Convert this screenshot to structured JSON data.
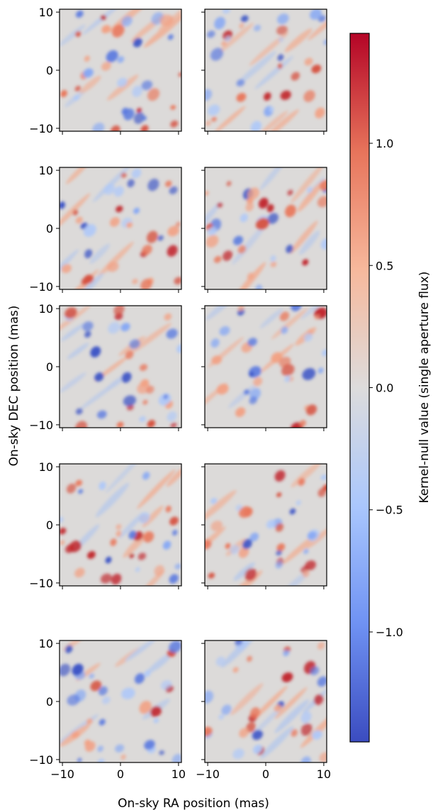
{
  "figure": {
    "xlabel": "On-sky RA position (mas)",
    "ylabel": "On-sky DEC position (mas)",
    "colorbar_label": "Kernel-null value (single aperture flux)"
  },
  "chart_data": {
    "type": "heatmap",
    "layout": {
      "rows": 5,
      "cols": 2,
      "sharex": true,
      "sharey": true
    },
    "xlabel": "On-sky RA position (mas)",
    "ylabel": "On-sky DEC position (mas)",
    "xlim": [
      -10.5,
      10.5
    ],
    "ylim": [
      -10.5,
      10.5
    ],
    "x_ticks": [
      -10,
      0,
      10
    ],
    "y_ticks": [
      -10,
      0,
      10
    ],
    "x_tick_labels": [
      "−10",
      "0",
      "10"
    ],
    "y_tick_labels": [
      "−10",
      "0",
      "10"
    ],
    "colormap": "coolwarm",
    "colormap_stops": [
      "#3b4cc0",
      "#6f92f3",
      "#aac7fd",
      "#dddcdc",
      "#f7b89c",
      "#e7745b",
      "#b40426"
    ],
    "colorbar": {
      "label": "Kernel-null value (single aperture flux)",
      "range": [
        -1.45,
        1.45
      ],
      "ticks": [
        -1.0,
        -0.5,
        0.0,
        0.5,
        1.0
      ],
      "tick_labels": [
        "−1.0",
        "−0.5",
        "0.0",
        "0.5",
        "1.0"
      ],
      "orientation": "vertical",
      "placement": "right"
    },
    "panels": [
      {
        "row": 1,
        "col": 1,
        "seed": 11
      },
      {
        "row": 1,
        "col": 2,
        "seed": 23
      },
      {
        "row": 2,
        "col": 1,
        "seed": 37
      },
      {
        "row": 2,
        "col": 2,
        "seed": 41
      },
      {
        "row": 3,
        "col": 1,
        "seed": 53
      },
      {
        "row": 3,
        "col": 2,
        "seed": 67
      },
      {
        "row": 4,
        "col": 1,
        "seed": 71
      },
      {
        "row": 4,
        "col": 2,
        "seed": 89
      },
      {
        "row": 5,
        "col": 1,
        "seed": 97
      },
      {
        "row": 5,
        "col": 2,
        "seed": 103
      }
    ]
  }
}
